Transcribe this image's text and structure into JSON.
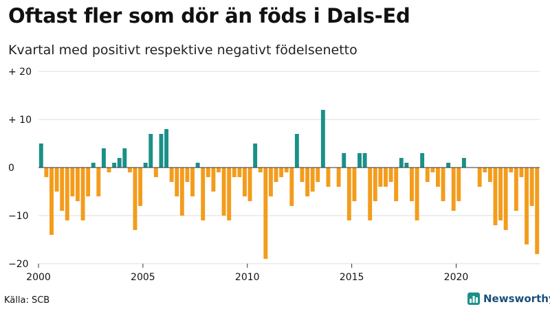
{
  "header": {
    "title": "Oftast fler som dör än föds i Dals-Ed",
    "subtitle": "Kvartal med positivt respektive negativt födelsenetto"
  },
  "footer": {
    "source": "Källa: SCB",
    "brand": "Newsworthy",
    "brand_icon": "bar-chart-icon"
  },
  "colors": {
    "positive": "#1a9088",
    "negative": "#f39c1c",
    "grid": "#dddddd",
    "zero_line": "#333333"
  },
  "chart_data": {
    "type": "bar",
    "title": "Oftast fler som dör än föds i Dals-Ed",
    "subtitle": "Kvartal med positivt respektive negativt födelsenetto",
    "xlabel": "",
    "ylabel": "",
    "ylim": [
      -20,
      20
    ],
    "yticks": [
      {
        "value": 20,
        "label": "+ 20"
      },
      {
        "value": 10,
        "label": "+ 10"
      },
      {
        "value": 0,
        "label": "0"
      },
      {
        "value": -10,
        "label": "−10"
      },
      {
        "value": -20,
        "label": "−20"
      }
    ],
    "xticks": [
      {
        "index": 0,
        "label": "2000"
      },
      {
        "index": 20,
        "label": "2005"
      },
      {
        "index": 40,
        "label": "2010"
      },
      {
        "index": 60,
        "label": "2015"
      },
      {
        "index": 80,
        "label": "2020"
      }
    ],
    "start": "2000 Q1",
    "end": "2023 Q4",
    "values": [
      5,
      -2,
      -14,
      -5,
      -9,
      -11,
      -6,
      -7,
      -11,
      -6,
      1,
      -6,
      4,
      -1,
      1,
      2,
      4,
      -1,
      -13,
      -8,
      1,
      7,
      -2,
      7,
      8,
      -3,
      -6,
      -10,
      -3,
      -6,
      1,
      -11,
      -2,
      -5,
      -1,
      -10,
      -11,
      -2,
      -2,
      -6,
      -7,
      5,
      -1,
      -19,
      -6,
      -3,
      -2,
      -1,
      -8,
      7,
      -3,
      -6,
      -5,
      -3,
      12,
      -4,
      0,
      -4,
      3,
      -11,
      -7,
      3,
      3,
      -11,
      -7,
      -4,
      -4,
      -3,
      -7,
      2,
      1,
      -7,
      -11,
      3,
      -3,
      -1,
      -4,
      -7,
      1,
      -9,
      -7,
      2,
      0,
      0,
      -4,
      -1,
      -3,
      -12,
      -11,
      -13,
      -1,
      -9,
      -2,
      -16,
      -8,
      -18
    ]
  }
}
